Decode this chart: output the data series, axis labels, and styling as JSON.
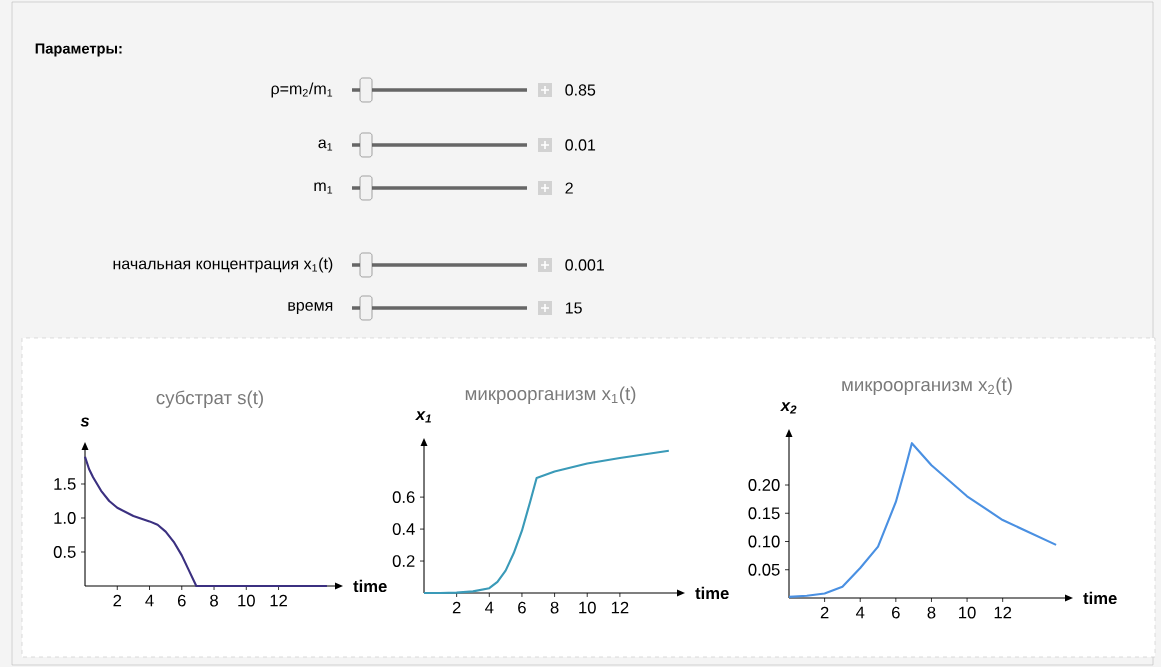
{
  "chart_data": [
    {
      "type": "other",
      "title": "Параметры:",
      "annotations": [
        "ρ=m$_{2}$/m$_{1}$",
        "0.85",
        "a$_{1}$",
        "0.01",
        "m$_{1}$",
        "2",
        "начальная концентрация x$_{1}$(t)",
        "0.001",
        "время",
        "15"
      ]
    },
    {
      "type": "line",
      "title": "субстрат s(t)",
      "xlabel": "time",
      "ylabel": "s",
      "xlim": [
        0,
        15.5
      ],
      "ylim": [
        0,
        2
      ],
      "xticks": [
        2,
        4,
        6,
        8,
        10,
        12
      ],
      "yticks": [
        0.5,
        {
          "value": 1,
          "label": "1.0"
        },
        1.5
      ],
      "series": [
        {
          "color": "#3b3080",
          "x": [
            0,
            0.25,
            0.5,
            1,
            1.5,
            2,
            3,
            4,
            4.5,
            5,
            5.5,
            6,
            6.5,
            6.9,
            8,
            10,
            12,
            15
          ],
          "values": [
            1.9,
            1.72,
            1.6,
            1.4,
            1.25,
            1.15,
            1.03,
            0.95,
            0.9,
            0.8,
            0.65,
            0.45,
            0.2,
            0,
            0,
            0,
            0,
            0
          ]
        }
      ]
    },
    {
      "type": "line",
      "title": "микроорганизм x$_{1}$(t)",
      "xlabel": "time",
      "ylabel": "x$_{1}$",
      "xlim": [
        0,
        15.5
      ],
      "ylim": [
        0,
        0.92
      ],
      "xticks": [
        2,
        4,
        6,
        8,
        10,
        12
      ],
      "yticks": [
        0.2,
        0.4,
        0.6
      ],
      "series": [
        {
          "color": "#3a9ab8",
          "x": [
            0,
            1,
            2,
            3,
            4,
            4.5,
            5,
            5.5,
            6,
            6.5,
            6.9,
            8,
            10,
            12,
            15
          ],
          "values": [
            0,
            0,
            0.002,
            0.01,
            0.03,
            0.07,
            0.14,
            0.25,
            0.39,
            0.57,
            0.72,
            0.76,
            0.81,
            0.845,
            0.89
          ]
        }
      ]
    },
    {
      "type": "line",
      "title": "микроорганизм x$_{2}$(t)",
      "xlabel": "time",
      "ylabel": "x$_{2}$",
      "xlim": [
        0,
        15.5
      ],
      "ylim": [
        0,
        0.285
      ],
      "xticks": [
        2,
        4,
        6,
        8,
        10,
        12
      ],
      "yticks": [
        0.05,
        {
          "value": 0.1,
          "label": "0.10"
        },
        0.15,
        {
          "value": 0.2,
          "label": "0.20"
        }
      ],
      "series": [
        {
          "color": "#4a90e2",
          "x": [
            0,
            1,
            2,
            3,
            4,
            5,
            6,
            6.5,
            6.9,
            8,
            10,
            12,
            15
          ],
          "values": [
            0.002,
            0.004,
            0.008,
            0.02,
            0.053,
            0.091,
            0.17,
            0.226,
            0.274,
            0.235,
            0.18,
            0.138,
            0.094
          ]
        }
      ]
    }
  ]
}
